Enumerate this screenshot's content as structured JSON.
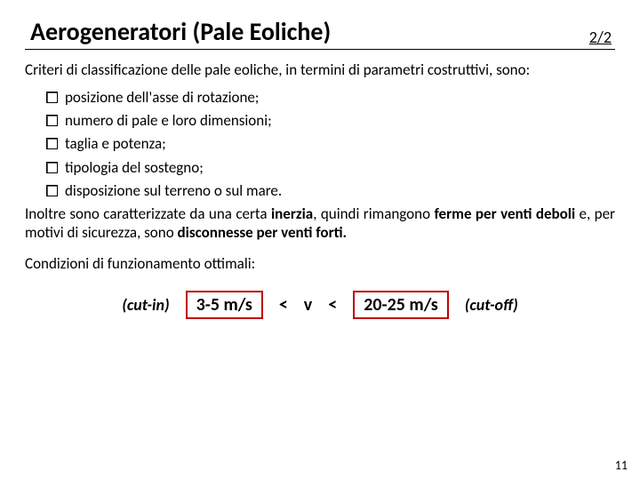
{
  "header": {
    "title": "Aerogeneratori (Pale Eoliche)",
    "page_indicator": "2/2"
  },
  "intro": "Criteri di classificazione delle pale eoliche, in termini di parametri costruttivi, sono:",
  "bullets": [
    "posizione dell'asse di rotazione;",
    "numero di pale e loro dimensioni;",
    "taglia e potenza;",
    "tipologia del sostegno;",
    "disposizione sul terreno o sul mare."
  ],
  "paragraph": {
    "pre": "Inoltre sono caratterizzate da una certa ",
    "b1": "inerzia",
    "mid1": ", quindi rimangono ",
    "b2": "ferme per venti deboli",
    "mid2": " e, per motivi di sicurezza, sono ",
    "b3": "disconnesse per venti forti.",
    "post": ""
  },
  "conditions_label": "Condizioni di funzionamento ottimali:",
  "formula": {
    "cut_in": "(cut-in)",
    "low": "3-5 m/s",
    "lt1": "<",
    "var": "v",
    "lt2": "<",
    "high": "20-25 m/s",
    "cut_off": "(cut-off)"
  },
  "slide_number": "11",
  "colors": {
    "box_border": "#c00000",
    "text": "#000000",
    "background": "#ffffff"
  }
}
